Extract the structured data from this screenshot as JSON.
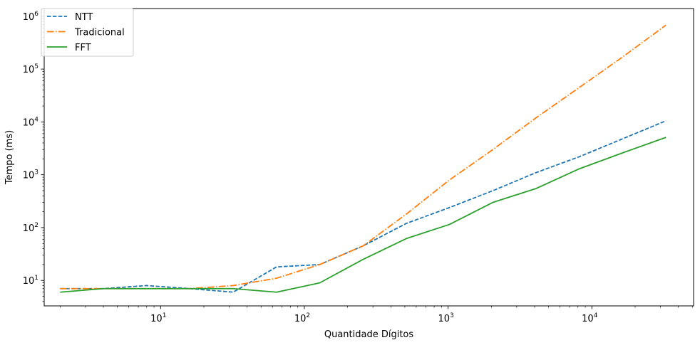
{
  "chart_data": {
    "type": "line",
    "title": "",
    "xlabel": "Quantidade Dígitos",
    "ylabel": "Tempo (ms)",
    "xscale": "log",
    "yscale": "log",
    "xlim": [
      1.55,
      51000
    ],
    "ylim": [
      3.3,
      1400000
    ],
    "grid": false,
    "legend_position": "upper left",
    "xticks": [
      {
        "base": "10",
        "exp": "1",
        "value": 10
      },
      {
        "base": "10",
        "exp": "2",
        "value": 100
      },
      {
        "base": "10",
        "exp": "3",
        "value": 1000
      },
      {
        "base": "10",
        "exp": "4",
        "value": 10000
      }
    ],
    "yticks": [
      {
        "base": "10",
        "exp": "1",
        "value": 10
      },
      {
        "base": "10",
        "exp": "2",
        "value": 100
      },
      {
        "base": "10",
        "exp": "3",
        "value": 1000
      },
      {
        "base": "10",
        "exp": "4",
        "value": 10000
      },
      {
        "base": "10",
        "exp": "5",
        "value": 100000
      },
      {
        "base": "10",
        "exp": "6",
        "value": 1000000
      }
    ],
    "x": [
      2,
      4,
      8,
      16,
      32,
      64,
      128,
      256,
      512,
      1024,
      2048,
      4096,
      8192,
      16384,
      32768
    ],
    "series": [
      {
        "name": "NTT",
        "color": "#1f77b4",
        "dash": "dashed",
        "values": [
          7,
          7,
          8,
          7,
          6,
          18,
          20,
          45,
          120,
          240,
          500,
          1100,
          2200,
          4800,
          10500
        ]
      },
      {
        "name": "Tradicional",
        "color": "#ff7f0e",
        "dash": "dashdot",
        "values": [
          7,
          7,
          7,
          7,
          8,
          11,
          20,
          45,
          180,
          800,
          3000,
          12000,
          45000,
          170000,
          680000
        ]
      },
      {
        "name": "FFT",
        "color": "#2ca02c",
        "dash": "solid",
        "values": [
          6,
          7,
          7,
          7,
          7,
          6,
          9,
          25,
          62,
          115,
          300,
          550,
          1300,
          2600,
          5100
        ]
      }
    ]
  }
}
